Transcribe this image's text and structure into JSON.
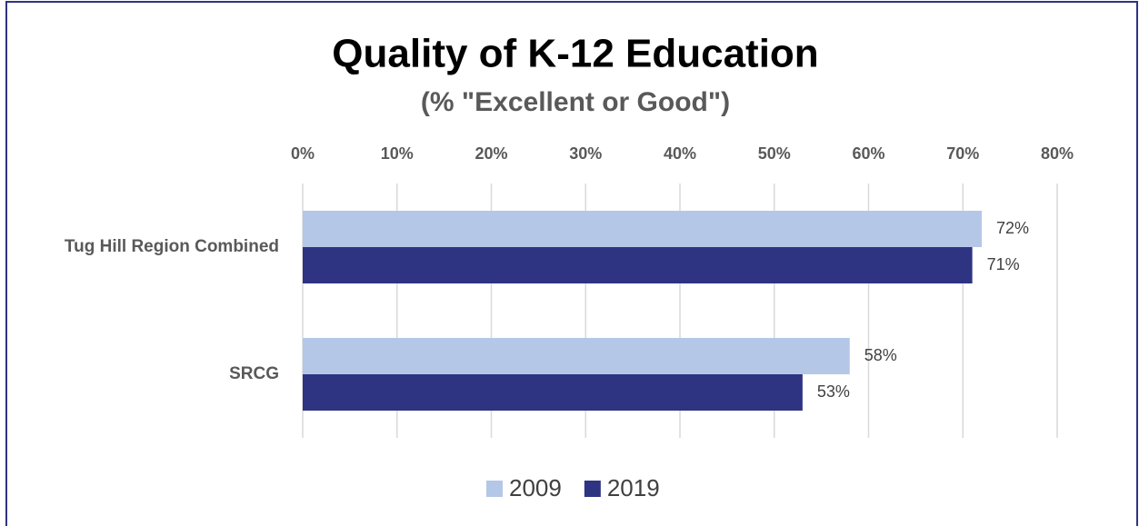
{
  "chart_data": {
    "type": "bar",
    "orientation": "horizontal",
    "title": "Quality of K-12 Education",
    "subtitle": "(% \"Excellent or Good\")",
    "categories": [
      "Tug Hill Region Combined",
      "SRCG"
    ],
    "series": [
      {
        "name": "2009",
        "color": "#b4c7e7",
        "values": [
          72,
          58
        ],
        "value_labels": [
          "72%",
          "58%"
        ]
      },
      {
        "name": "2019",
        "color": "#2e3382",
        "values": [
          71,
          53
        ],
        "value_labels": [
          "71%",
          "53%"
        ]
      }
    ],
    "xlim": [
      0,
      80
    ],
    "xticks": [
      {
        "value": 0,
        "label": "0%"
      },
      {
        "value": 10,
        "label": "10%"
      },
      {
        "value": 20,
        "label": "20%"
      },
      {
        "value": 30,
        "label": "30%"
      },
      {
        "value": 40,
        "label": "40%"
      },
      {
        "value": 50,
        "label": "50%"
      },
      {
        "value": 60,
        "label": "60%"
      },
      {
        "value": 70,
        "label": "70%"
      },
      {
        "value": 80,
        "label": "80%"
      }
    ],
    "grid": true,
    "legend": "bottom"
  }
}
